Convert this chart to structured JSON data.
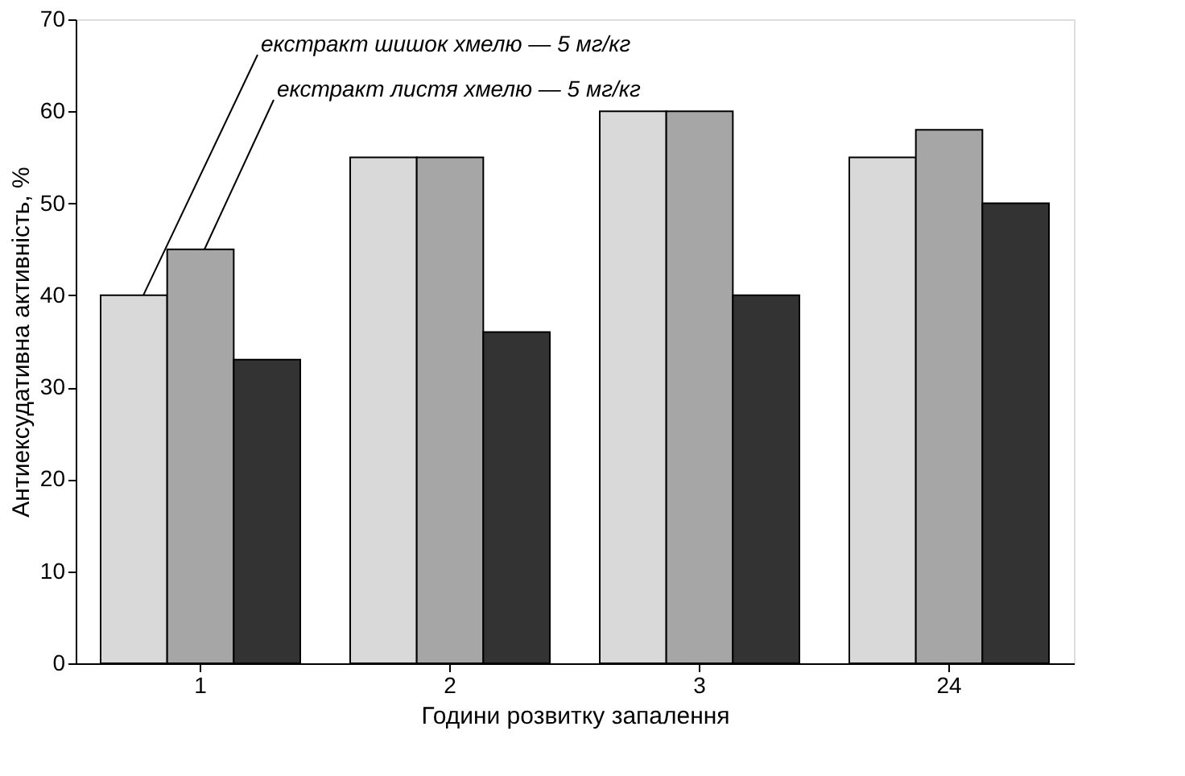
{
  "chart_data": {
    "type": "bar",
    "xlabel": "Години розвитку запалення",
    "ylabel": "Антиексудативна активність, %",
    "categories": [
      "1",
      "2",
      "3",
      "24"
    ],
    "series": [
      {
        "name": "екстракт шишок хмелю — 5 мг/кг",
        "color": "#d9d9d9",
        "values": [
          40,
          55,
          60,
          55
        ]
      },
      {
        "name": "екстракт листя хмелю — 5 мг/кг",
        "color": "#a6a6a6",
        "values": [
          45,
          55,
          60,
          58
        ]
      },
      {
        "color": "#333333",
        "values": [
          33,
          36,
          40,
          50
        ]
      }
    ],
    "ylim": [
      0,
      70
    ],
    "yticks": [
      0,
      10,
      20,
      30,
      40,
      50,
      60,
      70
    ],
    "grid": false,
    "legend": false
  }
}
